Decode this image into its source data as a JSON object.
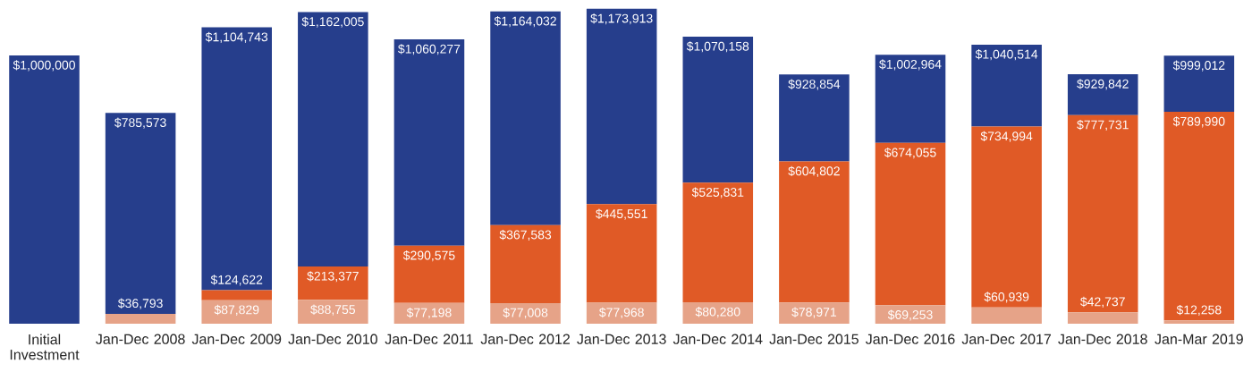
{
  "chart_data": {
    "type": "bar",
    "stacked": true,
    "categories": [
      "Initial Investment",
      "Jan-Dec 2008",
      "Jan-Dec 2009",
      "Jan-Dec 2010",
      "Jan-Dec 2011",
      "Jan-Dec 2012",
      "Jan-Dec 2013",
      "Jan-Dec 2014",
      "Jan-Dec 2015",
      "Jan-Dec 2016",
      "Jan-Dec 2017",
      "Jan-Dec 2018",
      "Jan-Mar 2019"
    ],
    "series": [
      {
        "color": "#e6a388",
        "values": [
          null,
          36793,
          87829,
          88755,
          77198,
          77008,
          77968,
          80280,
          78971,
          69253,
          60939,
          42737,
          12258
        ],
        "value_labels": [
          null,
          "$36,793",
          "$87,829",
          "$88,755",
          "$77,198",
          "$77,008",
          "$77,968",
          "$80,280",
          "$78,971",
          "$69,253",
          "$60,939",
          "$42,737",
          "$12,258"
        ]
      },
      {
        "color": "#e05a26",
        "values": [
          null,
          null,
          36793,
          124622,
          213377,
          290575,
          367583,
          445551,
          525831,
          604802,
          674055,
          734994,
          777732
        ]
      },
      {
        "color": "#263e8c",
        "values": [
          1000000,
          748780,
          980121,
          948628,
          769702,
          796449,
          728362,
          544327,
          324052,
          328909,
          305520,
          152111,
          209022
        ]
      }
    ],
    "totals": [
      "$1,000,000",
      "$785,573",
      "$1,104,743",
      "$1,162,005",
      "$1,060,277",
      "$1,164,032",
      "$1,173,913",
      "$1,070,158",
      "$928,854",
      "$1,002,964",
      "$1,040,514",
      "$929,842",
      "$999,012"
    ],
    "annotations": [
      {
        "text": "$124,622",
        "x": "Jan-Dec 2009",
        "y": 124622
      },
      {
        "text": "$213,377",
        "x": "Jan-Dec 2010",
        "y": 213377
      },
      {
        "text": "$290,575",
        "x": "Jan-Dec 2011",
        "y": 290575
      },
      {
        "text": "$367,583",
        "x": "Jan-Dec 2012",
        "y": 367583
      },
      {
        "text": "$445,551",
        "x": "Jan-Dec 2013",
        "y": 445551
      },
      {
        "text": "$525,831",
        "x": "Jan-Dec 2014",
        "y": 525831
      },
      {
        "text": "$604,802",
        "x": "Jan-Dec 2015",
        "y": 604802
      },
      {
        "text": "$674,055",
        "x": "Jan-Dec 2016",
        "y": 674055
      },
      {
        "text": "$734,994",
        "x": "Jan-Dec 2017",
        "y": 734994
      },
      {
        "text": "$777,731",
        "x": "Jan-Dec 2018",
        "y": 777731
      },
      {
        "text": "$789,990",
        "x": "Jan-Mar 2019",
        "y": 789990
      }
    ]
  }
}
